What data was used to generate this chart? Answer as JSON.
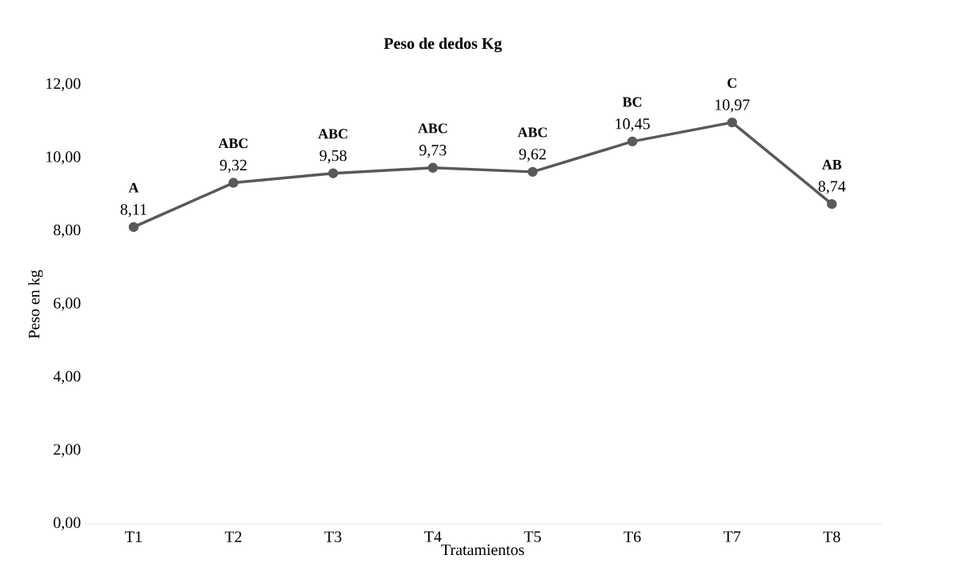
{
  "chart_data": {
    "type": "line",
    "title": "Peso de dedos Kg",
    "xlabel": "Tratamientos",
    "ylabel": "Peso en kg",
    "categories": [
      "T1",
      "T2",
      "T3",
      "T4",
      "T5",
      "T6",
      "T7",
      "T8"
    ],
    "series": [
      {
        "color": "#595959",
        "values": [
          8.11,
          9.32,
          9.58,
          9.73,
          9.62,
          10.45,
          10.97,
          8.74
        ],
        "value_labels": [
          "8,11",
          "9,32",
          "9,58",
          "9,73",
          "9,62",
          "10,45",
          "10,97",
          "8,74"
        ]
      }
    ],
    "ylim": [
      0,
      12
    ],
    "yticks": [
      {
        "value": 0,
        "label": "0,00"
      },
      {
        "value": 2,
        "label": "2,00"
      },
      {
        "value": 4,
        "label": "4,00"
      },
      {
        "value": 6,
        "label": "6,00"
      },
      {
        "value": 8,
        "label": "8,00"
      },
      {
        "value": 10,
        "label": "10,00"
      },
      {
        "value": 12,
        "label": "12,00"
      }
    ],
    "annotations": [
      {
        "text": "A",
        "x": "T1",
        "y": 8.11
      },
      {
        "text": "ABC",
        "x": "T2",
        "y": 9.32
      },
      {
        "text": "ABC",
        "x": "T3",
        "y": 9.58
      },
      {
        "text": "ABC",
        "x": "T4",
        "y": 9.73
      },
      {
        "text": "ABC",
        "x": "T5",
        "y": 9.62
      },
      {
        "text": "BC",
        "x": "T6",
        "y": 10.45
      },
      {
        "text": "C",
        "x": "T7",
        "y": 10.97
      },
      {
        "text": "AB",
        "x": "T8",
        "y": 8.74
      }
    ],
    "marker": "circle",
    "line_style": "solid",
    "grid": false
  }
}
